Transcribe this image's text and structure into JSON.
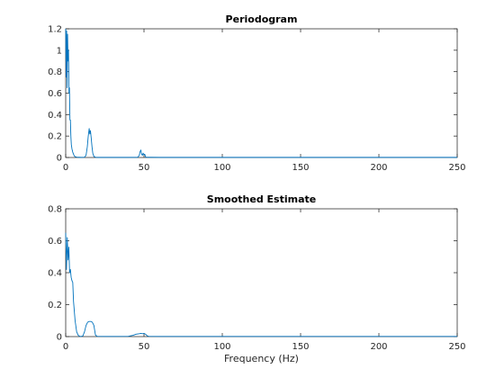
{
  "figure": {
    "line_color": "#0072BD"
  },
  "chart_data": [
    {
      "type": "line",
      "title": "Periodogram",
      "xlabel": "",
      "ylabel": "",
      "xlim": [
        0,
        250
      ],
      "ylim": [
        0,
        1.2
      ],
      "xticks": [
        0,
        50,
        100,
        150,
        200,
        250
      ],
      "xtick_labels": [
        "0",
        "50",
        "100",
        "150",
        "200",
        "250"
      ],
      "yticks": [
        0,
        0.2,
        0.4,
        0.6,
        0.8,
        1,
        1.2
      ],
      "ytick_labels": [
        "0",
        "0.2",
        "0.4",
        "0.6",
        "0.8",
        "1",
        "1.2"
      ],
      "grid": false,
      "series": [
        {
          "x": [
            0,
            0.3,
            0.6,
            0.9,
            1.2,
            1.5,
            1.8,
            2.1,
            2.4,
            2.7,
            3.0,
            3.3,
            3.6,
            4.0,
            4.5,
            5.0,
            5.5,
            6.0,
            7,
            8,
            10,
            12,
            13,
            13.8,
            14.4,
            15.0,
            15.4,
            15.8,
            16.3,
            16.8,
            17.3,
            18,
            19,
            20,
            25,
            30,
            40,
            46,
            47.0,
            47.5,
            48.0,
            48.5,
            49.0,
            49.5,
            50.0,
            50.5,
            51.0,
            52,
            60,
            100,
            150,
            200,
            250
          ],
          "y": [
            1.2,
            0.75,
            1.18,
            0.65,
            1.15,
            0.9,
            1.0,
            0.6,
            0.65,
            0.35,
            0.35,
            0.2,
            0.12,
            0.08,
            0.05,
            0.03,
            0.015,
            0.008,
            0.004,
            0.002,
            0.001,
            0.003,
            0.02,
            0.1,
            0.2,
            0.27,
            0.22,
            0.25,
            0.18,
            0.1,
            0.04,
            0.01,
            0.003,
            0.001,
            0.001,
            0.001,
            0.001,
            0.002,
            0.02,
            0.055,
            0.07,
            0.03,
            0.02,
            0.04,
            0.025,
            0.03,
            0.005,
            0.002,
            0.001,
            0.001,
            0.001,
            0.001,
            0.001
          ]
        }
      ]
    },
    {
      "type": "line",
      "title": "Smoothed Estimate",
      "xlabel": "Frequency (Hz)",
      "ylabel": "",
      "xlim": [
        0,
        250
      ],
      "ylim": [
        0,
        0.8
      ],
      "xticks": [
        0,
        50,
        100,
        150,
        200,
        250
      ],
      "xtick_labels": [
        "0",
        "50",
        "100",
        "150",
        "200",
        "250"
      ],
      "yticks": [
        0,
        0.2,
        0.4,
        0.6,
        0.8
      ],
      "ytick_labels": [
        "0",
        "0.2",
        "0.4",
        "0.6",
        "0.8"
      ],
      "grid": false,
      "series": [
        {
          "x": [
            0,
            0.5,
            1.0,
            1.5,
            2.0,
            2.5,
            3.0,
            3.5,
            4.0,
            4.5,
            5,
            6,
            7,
            8,
            9,
            10,
            11,
            12,
            13,
            14,
            15,
            16,
            17,
            18,
            18.5,
            19,
            20,
            25,
            30,
            40,
            43,
            45,
            47,
            48,
            49,
            50,
            51,
            52,
            53,
            60,
            100,
            150,
            200,
            250
          ],
          "y": [
            0.65,
            0.42,
            0.62,
            0.48,
            0.56,
            0.4,
            0.42,
            0.37,
            0.35,
            0.34,
            0.22,
            0.1,
            0.03,
            0.008,
            0.002,
            0.001,
            0.005,
            0.03,
            0.07,
            0.09,
            0.095,
            0.095,
            0.09,
            0.07,
            0.04,
            0.01,
            0.002,
            0.001,
            0.001,
            0.002,
            0.008,
            0.015,
            0.018,
            0.02,
            0.018,
            0.02,
            0.015,
            0.005,
            0.002,
            0.001,
            0.001,
            0.001,
            0.001,
            0.001
          ]
        }
      ]
    }
  ]
}
